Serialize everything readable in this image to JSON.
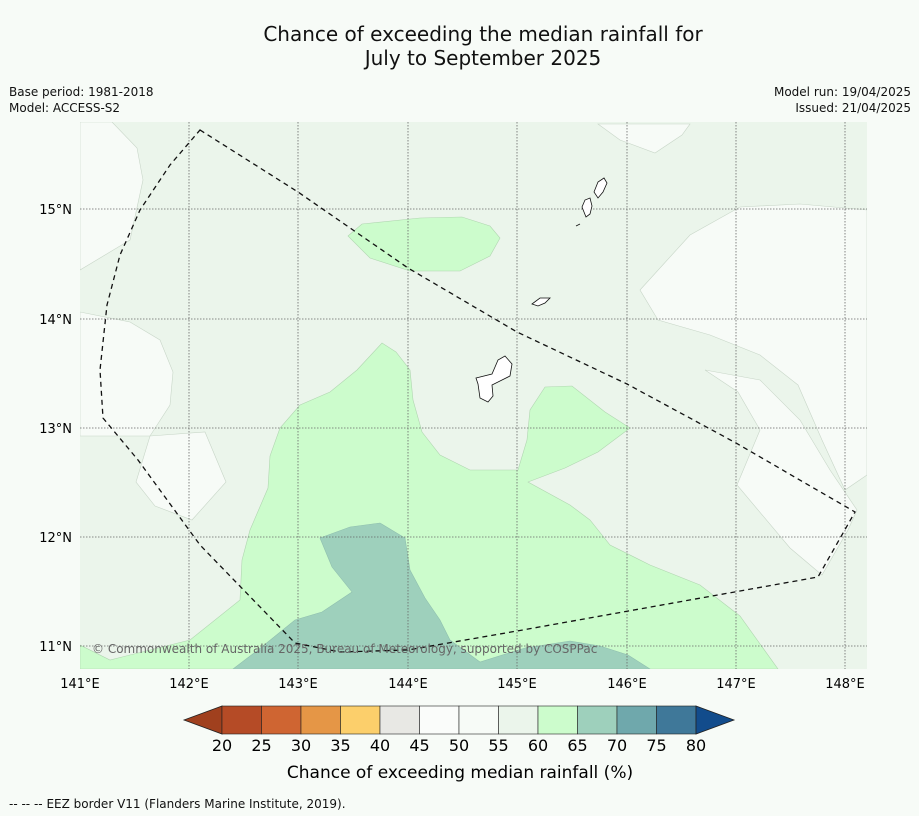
{
  "title": {
    "line1": "Chance of exceeding the median rainfall for",
    "line2": "July to September 2025"
  },
  "meta": {
    "base_period": "Base period: 1981-2018",
    "model": "Model: ACCESS-S2",
    "model_run": "Model run: 19/04/2025",
    "issued": "Issued: 21/04/2025"
  },
  "map": {
    "lon_ticks": [
      "141°E",
      "142°E",
      "143°E",
      "144°E",
      "145°E",
      "146°E",
      "147°E",
      "148°E"
    ],
    "lat_ticks": [
      "15°N",
      "14°N",
      "13°N",
      "12°N",
      "11°N"
    ],
    "copyright": "© Commonwealth of Australia 2025, Bureau of Meteorology, supported by COSPPac"
  },
  "colorbar": {
    "labels": [
      "20",
      "25",
      "30",
      "35",
      "40",
      "45",
      "50",
      "55",
      "60",
      "65",
      "70",
      "75",
      "80"
    ],
    "colors": [
      "#a0401e",
      "#b54b26",
      "#cf6532",
      "#e59646",
      "#fccf6b",
      "#e8e8e4",
      "#fafcfa",
      "#f7fbf7",
      "#ebf5eb",
      "#ccfccc",
      "#9ed0bc",
      "#6fa8ac",
      "#3f7899",
      "#124c8c"
    ],
    "title": "Chance of exceeding median rainfall (%)"
  },
  "footnote": {
    "dashes": "-- -- --",
    "text": "EEZ border V11 (Flanders Marine Institute, 2019)."
  }
}
